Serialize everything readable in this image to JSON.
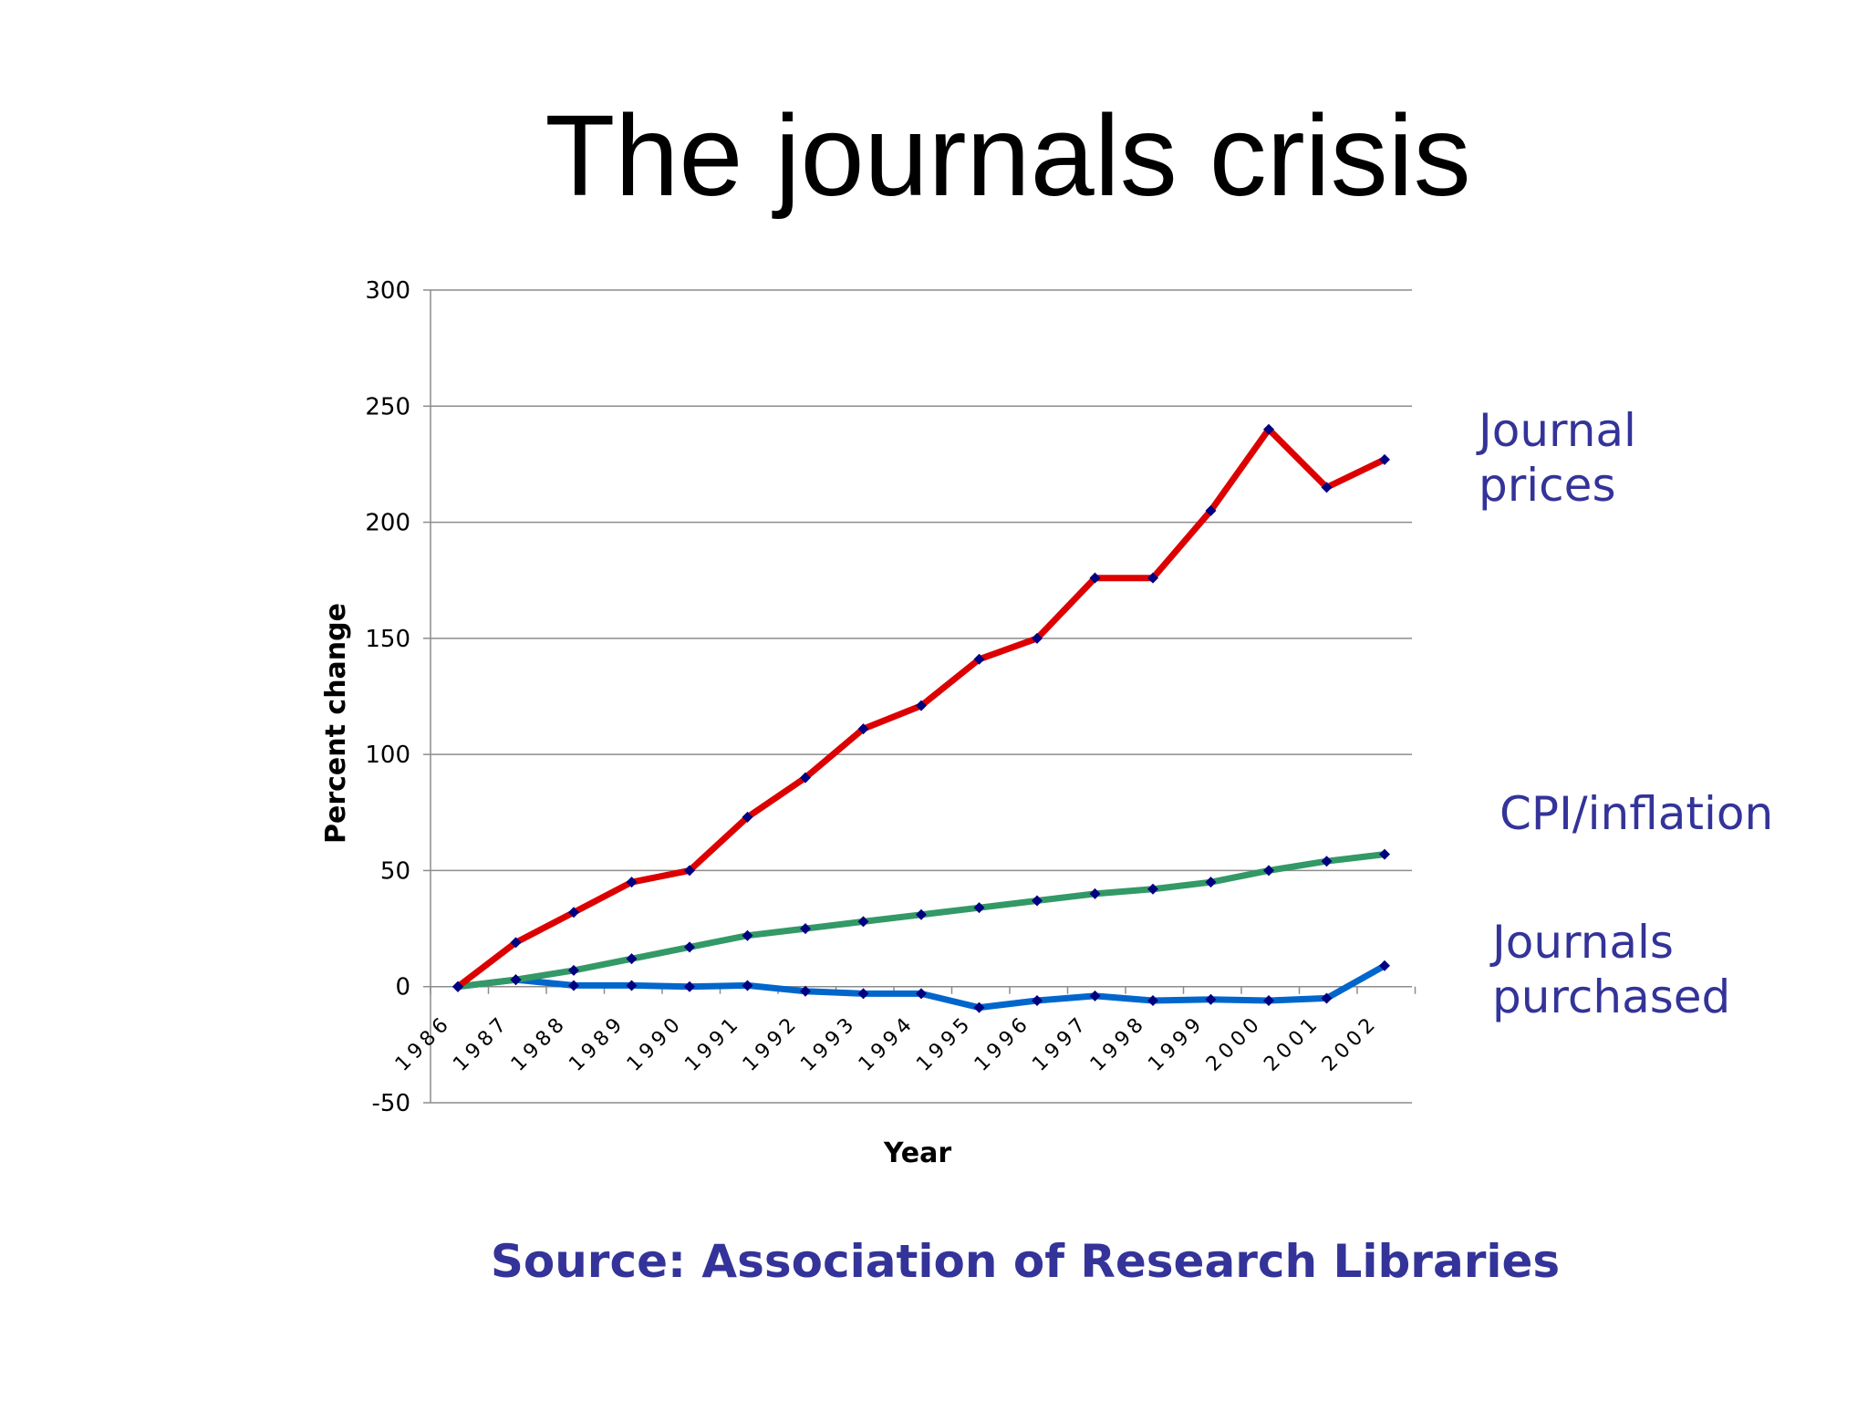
{
  "slide": {
    "title": "The journals crisis",
    "source": "Source: Association of Research Libraries"
  },
  "chart_data": {
    "type": "line",
    "title": "",
    "xlabel": "Year",
    "ylabel": "Percent change",
    "ylim": [
      -50,
      300
    ],
    "yticks": [
      -50,
      0,
      50,
      100,
      150,
      200,
      250,
      300
    ],
    "categories": [
      "1986",
      "1987",
      "1988",
      "1989",
      "1990",
      "1991",
      "1992",
      "1993",
      "1994",
      "1995",
      "1996",
      "1997",
      "1998",
      "1999",
      "2000",
      "2001",
      "2002"
    ],
    "grid": "horizontal",
    "marker_color": "#000080",
    "series": [
      {
        "name": "Journal prices",
        "color": "#dd0000",
        "values": [
          0,
          19,
          32,
          45,
          50,
          73,
          90,
          111,
          121,
          141,
          150,
          176,
          176,
          205,
          240,
          215,
          227
        ]
      },
      {
        "name": "CPI/inflation",
        "color": "#339966",
        "values": [
          0,
          3,
          7,
          12,
          17,
          22,
          25,
          28,
          31,
          34,
          37,
          40,
          42,
          45,
          50,
          54,
          57
        ]
      },
      {
        "name": "Journals purchased",
        "color": "#0066cc",
        "values": [
          0,
          3,
          0.5,
          0.5,
          0,
          0.5,
          -2,
          -3,
          -3,
          -9,
          -6,
          -4,
          -6,
          -5.5,
          -6,
          -5,
          9
        ]
      }
    ],
    "series_label_text": [
      [
        "Journal",
        "prices"
      ],
      [
        "CPI/inflation"
      ],
      [
        "Journals",
        "purchased"
      ]
    ]
  }
}
